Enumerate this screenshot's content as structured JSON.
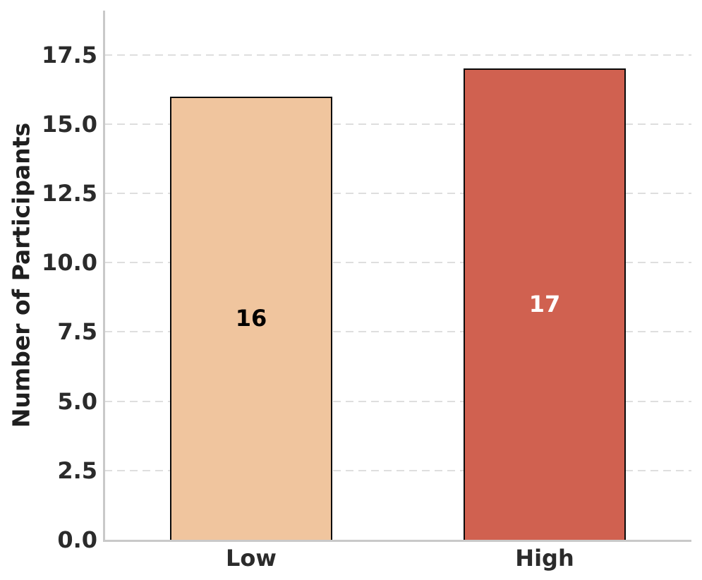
{
  "chart_data": {
    "type": "bar",
    "categories": [
      "Low",
      "High"
    ],
    "values": [
      16,
      17
    ],
    "bar_labels": [
      "16",
      "17"
    ],
    "bar_colors": [
      "#F0C59E",
      "#D06150"
    ],
    "bar_label_colors": [
      "#000000",
      "#ffffff"
    ],
    "bar_edge_color": "#0a0a0a",
    "title": "",
    "xlabel": "",
    "ylabel": "Number of Participants",
    "ylim": [
      0,
      19.1
    ],
    "yticks": [
      {
        "value": 0,
        "label": "0.0"
      },
      {
        "value": 2.5,
        "label": "2.5"
      },
      {
        "value": 5,
        "label": "5.0"
      },
      {
        "value": 7.5,
        "label": "7.5"
      },
      {
        "value": 10,
        "label": "10.0"
      },
      {
        "value": 12.5,
        "label": "12.5"
      },
      {
        "value": 15,
        "label": "15.0"
      },
      {
        "value": 17.5,
        "label": "17.5"
      }
    ],
    "grid": {
      "axis": "y",
      "style": "dashed",
      "color": "#dedede",
      "on": true
    },
    "legend": null,
    "spine_color": "#c9c9c9",
    "tick_label_color": "#2b2b2b",
    "axis_label_color": "#1f1f1f",
    "background_color": "#ffffff"
  }
}
